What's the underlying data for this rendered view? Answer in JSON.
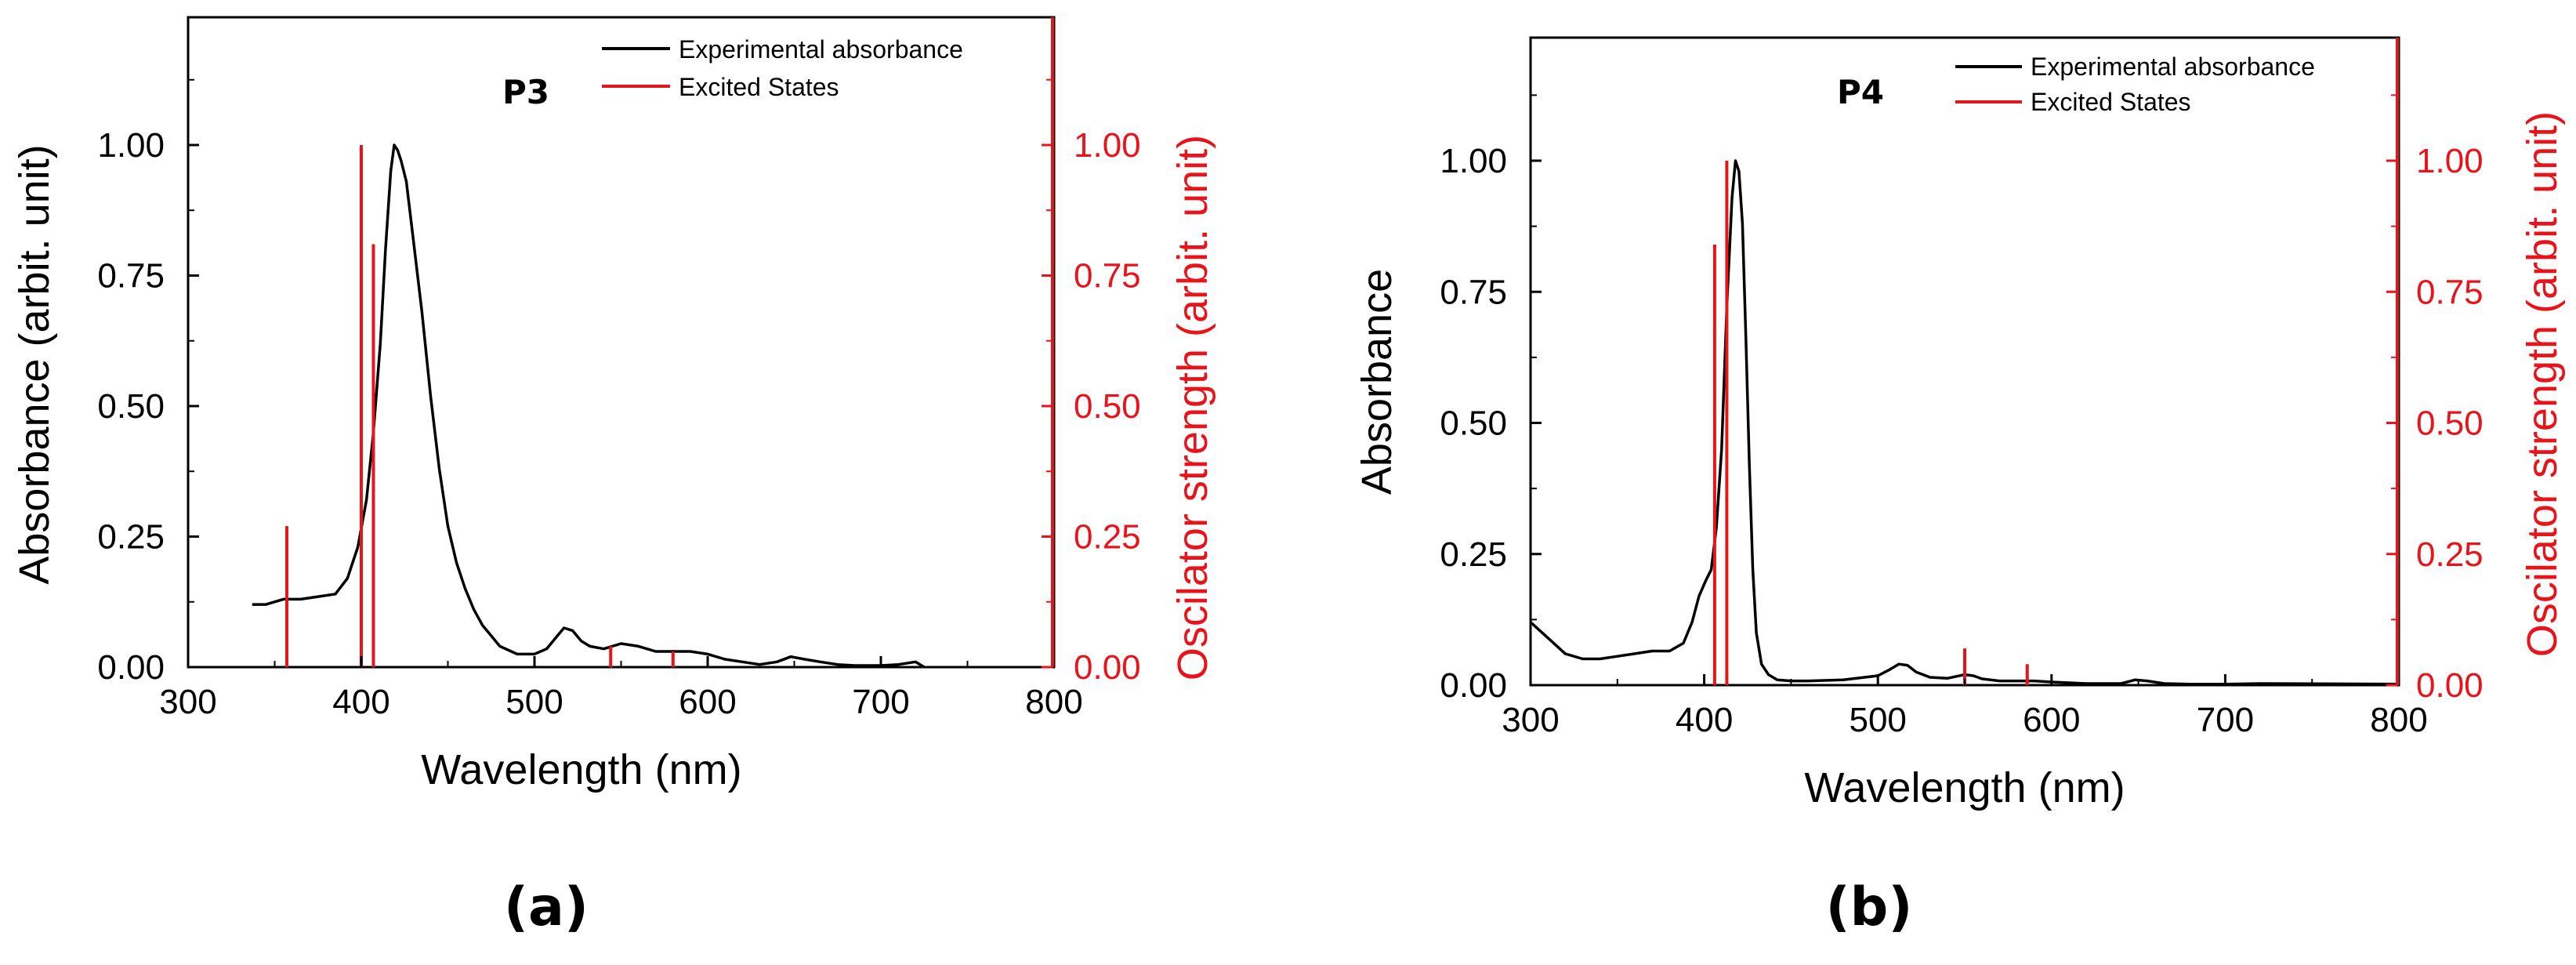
{
  "chart_data": [
    {
      "type": "line",
      "panel_label": "P3",
      "caption": "(a)",
      "xlabel": "Wavelength (nm)",
      "ylabel": "Absorbance (arbit. unit)",
      "y2label": "Oscilator strength (arbit. unit)",
      "xlim": [
        300,
        800
      ],
      "ylim": [
        0,
        1.2
      ],
      "y2lim": [
        0,
        1.2
      ],
      "xticks": [
        300,
        400,
        500,
        600,
        700,
        800
      ],
      "xtick_labels": [
        "300",
        "400",
        "500",
        "600",
        "700",
        "800"
      ],
      "yticks": [
        0,
        0.25,
        0.5,
        0.75,
        1.0
      ],
      "ytick_labels": [
        "0.00",
        "0.25",
        "0.50",
        "0.75",
        "1.00"
      ],
      "y2tick_labels": [
        "0.00",
        "0.25",
        "0.50",
        "0.75",
        "1.00"
      ],
      "legend": {
        "position": "top-right",
        "entries": [
          "Experimental absorbance",
          "Excited States"
        ]
      },
      "series": [
        {
          "name": "Experimental absorbance",
          "color": "#000000",
          "x": [
            337,
            345,
            355,
            365,
            375,
            385,
            392,
            398,
            403,
            407,
            411,
            414,
            417,
            419,
            421,
            423,
            426,
            430,
            435,
            440,
            445,
            450,
            455,
            460,
            465,
            470,
            475,
            480,
            490,
            500,
            507,
            512,
            517,
            522,
            527,
            532,
            540,
            550,
            560,
            570,
            580,
            590,
            600,
            610,
            620,
            630,
            640,
            648,
            656,
            665,
            675,
            685,
            700,
            710,
            720,
            725
          ],
          "y": [
            0.12,
            0.12,
            0.13,
            0.13,
            0.135,
            0.14,
            0.17,
            0.23,
            0.32,
            0.45,
            0.62,
            0.8,
            0.95,
            1.0,
            0.99,
            0.97,
            0.93,
            0.82,
            0.68,
            0.52,
            0.38,
            0.27,
            0.2,
            0.15,
            0.11,
            0.08,
            0.06,
            0.04,
            0.025,
            0.025,
            0.035,
            0.055,
            0.075,
            0.07,
            0.05,
            0.04,
            0.035,
            0.045,
            0.04,
            0.03,
            0.03,
            0.03,
            0.025,
            0.015,
            0.01,
            0.005,
            0.01,
            0.02,
            0.015,
            0.01,
            0.005,
            0.003,
            0.003,
            0.005,
            0.01,
            0.0
          ]
        },
        {
          "name": "Excited States",
          "color": "#e8141b",
          "type": "stick",
          "x": [
            357,
            400,
            407,
            544,
            580
          ],
          "y": [
            0.27,
            1.0,
            0.81,
            0.04,
            0.03
          ]
        }
      ]
    },
    {
      "type": "line",
      "panel_label": "P4",
      "caption": "(b)",
      "xlabel": "Wavelength (nm)",
      "ylabel": "Absorbance",
      "y2label": "Oscilator strength (arbit. unit)",
      "xlim": [
        300,
        800
      ],
      "ylim": [
        0,
        1.2
      ],
      "y2lim": [
        0,
        1.2
      ],
      "xticks": [
        300,
        400,
        500,
        600,
        700,
        800
      ],
      "xtick_labels": [
        "300",
        "400",
        "500",
        "600",
        "700",
        "800"
      ],
      "yticks": [
        0,
        0.25,
        0.5,
        0.75,
        1.0
      ],
      "ytick_labels": [
        "0.00",
        "0.25",
        "0.50",
        "0.75",
        "1.00"
      ],
      "y2tick_labels": [
        "0.00",
        "0.25",
        "0.50",
        "0.75",
        "1.00"
      ],
      "legend": {
        "position": "top-right",
        "entries": [
          "Experimental absorbance",
          "Excited States"
        ]
      },
      "series": [
        {
          "name": "Experimental absorbance",
          "color": "#000000",
          "x": [
            300,
            310,
            320,
            330,
            340,
            350,
            360,
            370,
            380,
            388,
            393,
            397,
            401,
            404,
            407,
            410,
            413,
            416,
            418,
            420,
            422,
            424,
            426,
            428,
            430,
            433,
            437,
            442,
            450,
            460,
            480,
            500,
            507,
            512,
            517,
            522,
            530,
            540,
            550,
            555,
            560,
            570,
            580,
            590,
            600,
            620,
            640,
            648,
            655,
            665,
            680,
            700,
            720,
            800
          ],
          "y": [
            0.12,
            0.09,
            0.06,
            0.05,
            0.05,
            0.055,
            0.06,
            0.065,
            0.065,
            0.08,
            0.12,
            0.17,
            0.2,
            0.22,
            0.3,
            0.45,
            0.72,
            0.93,
            1.0,
            0.98,
            0.88,
            0.66,
            0.42,
            0.22,
            0.1,
            0.04,
            0.02,
            0.01,
            0.008,
            0.008,
            0.01,
            0.018,
            0.03,
            0.04,
            0.038,
            0.025,
            0.015,
            0.013,
            0.02,
            0.018,
            0.012,
            0.008,
            0.008,
            0.008,
            0.006,
            0.003,
            0.003,
            0.01,
            0.008,
            0.003,
            0.002,
            0.002,
            0.003,
            0.002
          ]
        },
        {
          "name": "Excited States",
          "color": "#e8141b",
          "type": "stick",
          "x": [
            406,
            413,
            550,
            586
          ],
          "y": [
            0.84,
            1.0,
            0.07,
            0.04
          ]
        }
      ]
    }
  ]
}
